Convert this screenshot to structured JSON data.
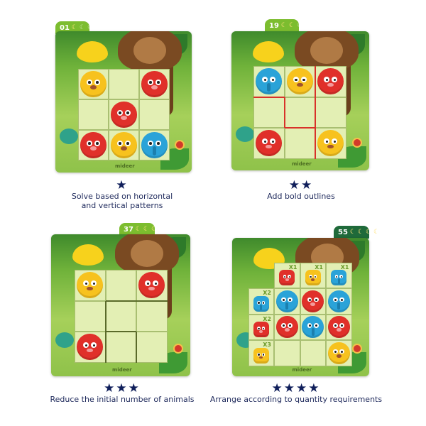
{
  "brand": "mideer",
  "colors": {
    "star": "#0f1e5a",
    "caption": "#1f2a5c",
    "tab_green": "#7cbd2f",
    "tab_dark": "#1f6a3a",
    "outline_red": "#d8322a",
    "outline_dark": "#5a6a2a"
  },
  "animal_colors": {
    "bear": "#e0302a",
    "leopard": "#f7c21e",
    "elephant": "#2aa3d8"
  },
  "cards": [
    {
      "level": "01",
      "bananas_filled": 1,
      "bananas_total": 4,
      "stars": 1,
      "star_text": "★",
      "caption_lines": [
        "Solve based on horizontal",
        "and vertical patterns"
      ],
      "grid": [
        [
          "leopard",
          null,
          "bear"
        ],
        [
          null,
          "bear",
          null
        ],
        [
          "bear",
          "leopard",
          "elephant"
        ]
      ],
      "bold_outlines": "none"
    },
    {
      "level": "19",
      "bananas_filled": 2,
      "bananas_total": 4,
      "stars": 2,
      "star_text": "★★",
      "caption_lines": [
        "Add bold outlines"
      ],
      "grid": [
        [
          "elephant",
          "leopard",
          "bear"
        ],
        [
          null,
          null,
          null
        ],
        [
          "bear",
          null,
          "leopard"
        ]
      ],
      "bold_outlines": "red"
    },
    {
      "level": "37",
      "bananas_filled": 3,
      "bananas_total": 4,
      "stars": 3,
      "star_text": "★★★",
      "caption_lines": [
        "Reduce the initial number of animals"
      ],
      "grid": [
        [
          "leopard",
          null,
          "bear"
        ],
        [
          null,
          null,
          null
        ],
        [
          "bear",
          null,
          null
        ]
      ],
      "bold_outlines": "dark"
    },
    {
      "level": "55",
      "bananas_filled": 4,
      "bananas_total": 4,
      "stars": 4,
      "star_text": "★★★★",
      "caption_lines": [
        "Arrange according to quantity requirements"
      ],
      "grid": [
        [
          "elephant",
          "bear",
          "elephant"
        ],
        [
          "bear",
          "elephant",
          "bear"
        ],
        [
          null,
          null,
          "leopard"
        ]
      ],
      "column_requirements": [
        {
          "animal": "bear",
          "count": "X1"
        },
        {
          "animal": "leopard",
          "count": "X1"
        },
        {
          "animal": "elephant",
          "count": "X1"
        }
      ],
      "row_requirements": [
        {
          "animal": "elephant",
          "count": "X2"
        },
        {
          "animal": "bear",
          "count": "X2"
        },
        {
          "animal": "leopard",
          "count": "X3"
        }
      ],
      "bold_outlines": "none"
    }
  ]
}
